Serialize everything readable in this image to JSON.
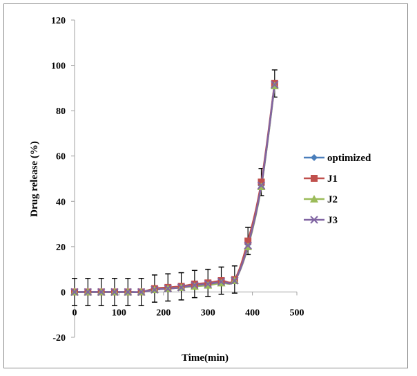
{
  "chart_data": {
    "type": "line",
    "title": "",
    "xlabel": "Time(min)",
    "ylabel": "Drug release (%)",
    "xlim": [
      0,
      500
    ],
    "ylim": [
      -20,
      120
    ],
    "x_ticks": [
      "0",
      "100",
      "200",
      "300",
      "400",
      "500"
    ],
    "y_ticks": [
      "-20",
      "0",
      "20",
      "40",
      "60",
      "80",
      "100",
      "120"
    ],
    "grid": false,
    "legend_position": "right",
    "x": [
      0,
      30,
      60,
      90,
      120,
      150,
      180,
      210,
      240,
      270,
      300,
      330,
      360,
      390,
      420,
      450
    ],
    "error": [
      6,
      6,
      6,
      6,
      6,
      6,
      6,
      6,
      6,
      6,
      6,
      6,
      6,
      6,
      6,
      6
    ],
    "series": [
      {
        "name": "optimized",
        "color": "#4a7ebb",
        "marker": "diamond",
        "values": [
          0,
          0,
          0,
          0,
          0,
          0,
          1,
          1.5,
          2,
          3,
          3.5,
          4.5,
          5,
          21,
          47,
          91.5
        ]
      },
      {
        "name": "J1",
        "color": "#c0504d",
        "marker": "square",
        "values": [
          0,
          0,
          0,
          0,
          0,
          0,
          1.5,
          2,
          2.5,
          3.5,
          4,
          5,
          5.5,
          22.5,
          48.5,
          92
        ]
      },
      {
        "name": "J2",
        "color": "#9bbb59",
        "marker": "triangle",
        "values": [
          0,
          0,
          0,
          0,
          0,
          0,
          1,
          1.5,
          2,
          2.5,
          3,
          4,
          5,
          20,
          46.5,
          91
        ]
      },
      {
        "name": "J3",
        "color": "#8064a2",
        "marker": "x",
        "values": [
          0,
          0,
          0,
          0,
          0,
          0,
          1,
          1.5,
          2,
          3,
          3.5,
          4.5,
          5,
          20.5,
          47,
          91.5
        ]
      }
    ]
  }
}
